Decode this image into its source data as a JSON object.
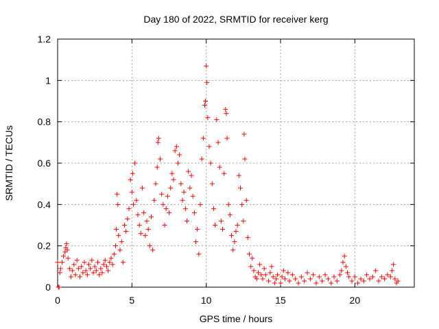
{
  "chart_data": {
    "type": "scatter",
    "title": "Day 180 of 2022, SRMTID for receiver kerg",
    "xlabel": "GPS time / hours",
    "ylabel": "SRMTID / TECUs",
    "xlim": [
      0,
      24
    ],
    "ylim": [
      0,
      1.2
    ],
    "xticks": [
      0,
      5,
      10,
      15,
      20
    ],
    "xtick_labels": [
      "0",
      "5",
      "10",
      "15",
      "20"
    ],
    "yticks": [
      0,
      0.2,
      0.4,
      0.6,
      0.8,
      1.0,
      1.2
    ],
    "ytick_labels": [
      "0",
      "0.2",
      "0.4",
      "0.6",
      "0.8",
      "1",
      "1.2"
    ],
    "grid": true,
    "marker": "+",
    "color": "#ff0000",
    "series": [
      {
        "name": "SRMTID",
        "points": [
          [
            0.0,
            0.12
          ],
          [
            0.05,
            0.0
          ],
          [
            0.1,
            0.0
          ],
          [
            0.15,
            0.07
          ],
          [
            0.2,
            0.09
          ],
          [
            0.3,
            0.12
          ],
          [
            0.4,
            0.15
          ],
          [
            0.5,
            0.17
          ],
          [
            0.55,
            0.19
          ],
          [
            0.6,
            0.21
          ],
          [
            0.65,
            0.18
          ],
          [
            0.7,
            0.14
          ],
          [
            0.8,
            0.09
          ],
          [
            0.9,
            0.05
          ],
          [
            1.0,
            0.08
          ],
          [
            1.1,
            0.11
          ],
          [
            1.2,
            0.06
          ],
          [
            1.3,
            0.13
          ],
          [
            1.4,
            0.09
          ],
          [
            1.5,
            0.05
          ],
          [
            1.6,
            0.1
          ],
          [
            1.7,
            0.07
          ],
          [
            1.8,
            0.12
          ],
          [
            1.9,
            0.08
          ],
          [
            2.0,
            0.06
          ],
          [
            2.1,
            0.11
          ],
          [
            2.2,
            0.09
          ],
          [
            2.3,
            0.13
          ],
          [
            2.4,
            0.07
          ],
          [
            2.5,
            0.1
          ],
          [
            2.6,
            0.08
          ],
          [
            2.7,
            0.12
          ],
          [
            2.8,
            0.06
          ],
          [
            2.9,
            0.09
          ],
          [
            3.0,
            0.07
          ],
          [
            3.1,
            0.11
          ],
          [
            3.2,
            0.13
          ],
          [
            3.3,
            0.1
          ],
          [
            3.4,
            0.08
          ],
          [
            3.5,
            0.12
          ],
          [
            3.6,
            0.14
          ],
          [
            3.7,
            0.11
          ],
          [
            3.8,
            0.16
          ],
          [
            3.9,
            0.2
          ],
          [
            3.95,
            0.28
          ],
          [
            4.0,
            0.45
          ],
          [
            4.05,
            0.4
          ],
          [
            4.1,
            0.25
          ],
          [
            4.2,
            0.18
          ],
          [
            4.3,
            0.22
          ],
          [
            4.4,
            0.12
          ],
          [
            4.5,
            0.3
          ],
          [
            4.6,
            0.27
          ],
          [
            4.7,
            0.33
          ],
          [
            4.8,
            0.38
          ],
          [
            4.9,
            0.52
          ],
          [
            5.0,
            0.46
          ],
          [
            5.05,
            0.55
          ],
          [
            5.1,
            0.4
          ],
          [
            5.2,
            0.6
          ],
          [
            5.3,
            0.42
          ],
          [
            5.4,
            0.35
          ],
          [
            5.5,
            0.3
          ],
          [
            5.6,
            0.26
          ],
          [
            5.7,
            0.48
          ],
          [
            5.8,
            0.36
          ],
          [
            5.9,
            0.25
          ],
          [
            6.0,
            0.32
          ],
          [
            6.1,
            0.28
          ],
          [
            6.2,
            0.2
          ],
          [
            6.3,
            0.34
          ],
          [
            6.4,
            0.18
          ],
          [
            6.5,
            0.42
          ],
          [
            6.6,
            0.5
          ],
          [
            6.7,
            0.58
          ],
          [
            6.75,
            0.7
          ],
          [
            6.8,
            0.72
          ],
          [
            6.9,
            0.62
          ],
          [
            7.0,
            0.45
          ],
          [
            7.1,
            0.4
          ],
          [
            7.2,
            0.3
          ],
          [
            7.3,
            0.38
          ],
          [
            7.4,
            0.44
          ],
          [
            7.5,
            0.36
          ],
          [
            7.6,
            0.48
          ],
          [
            7.7,
            0.55
          ],
          [
            7.8,
            0.52
          ],
          [
            7.9,
            0.66
          ],
          [
            8.0,
            0.68
          ],
          [
            8.1,
            0.6
          ],
          [
            8.2,
            0.64
          ],
          [
            8.3,
            0.5
          ],
          [
            8.4,
            0.42
          ],
          [
            8.5,
            0.46
          ],
          [
            8.6,
            0.38
          ],
          [
            8.7,
            0.32
          ],
          [
            8.8,
            0.56
          ],
          [
            8.9,
            0.48
          ],
          [
            9.0,
            0.54
          ],
          [
            9.1,
            0.44
          ],
          [
            9.2,
            0.36
          ],
          [
            9.3,
            0.22
          ],
          [
            9.4,
            0.28
          ],
          [
            9.5,
            0.16
          ],
          [
            9.6,
            0.4
          ],
          [
            9.7,
            0.62
          ],
          [
            9.8,
            0.72
          ],
          [
            9.9,
            0.88
          ],
          [
            9.95,
            0.9
          ],
          [
            10.0,
            1.07
          ],
          [
            10.05,
            0.99
          ],
          [
            10.1,
            0.82
          ],
          [
            10.2,
            0.68
          ],
          [
            10.3,
            0.6
          ],
          [
            10.4,
            0.5
          ],
          [
            10.5,
            0.38
          ],
          [
            10.6,
            0.3
          ],
          [
            10.7,
            0.81
          ],
          [
            10.8,
            0.7
          ],
          [
            10.9,
            0.58
          ],
          [
            11.0,
            0.32
          ],
          [
            11.1,
            0.28
          ],
          [
            11.2,
            0.55
          ],
          [
            11.3,
            0.86
          ],
          [
            11.35,
            0.84
          ],
          [
            11.4,
            0.72
          ],
          [
            11.5,
            0.4
          ],
          [
            11.6,
            0.35
          ],
          [
            11.7,
            0.25
          ],
          [
            11.8,
            0.18
          ],
          [
            11.9,
            0.22
          ],
          [
            12.0,
            0.27
          ],
          [
            12.1,
            0.3
          ],
          [
            12.2,
            0.54
          ],
          [
            12.3,
            0.48
          ],
          [
            12.4,
            0.4
          ],
          [
            12.5,
            0.32
          ],
          [
            12.55,
            0.74
          ],
          [
            12.6,
            0.62
          ],
          [
            12.7,
            0.42
          ],
          [
            12.8,
            0.24
          ],
          [
            12.9,
            0.16
          ],
          [
            13.0,
            0.1
          ],
          [
            13.1,
            0.14
          ],
          [
            13.2,
            0.08
          ],
          [
            13.3,
            0.05
          ],
          [
            13.4,
            0.04
          ],
          [
            13.5,
            0.07
          ],
          [
            13.6,
            0.11
          ],
          [
            13.7,
            0.06
          ],
          [
            13.8,
            0.04
          ],
          [
            13.9,
            0.09
          ],
          [
            14.0,
            0.06
          ],
          [
            14.2,
            0.03
          ],
          [
            14.3,
            0.07
          ],
          [
            14.4,
            0.1
          ],
          [
            14.5,
            0.05
          ],
          [
            14.6,
            0.02
          ],
          [
            14.7,
            0.04
          ],
          [
            14.8,
            0.06
          ],
          [
            15.0,
            0.02
          ],
          [
            15.1,
            0.05
          ],
          [
            15.2,
            0.08
          ],
          [
            15.3,
            0.04
          ],
          [
            15.5,
            0.07
          ],
          [
            15.6,
            0.03
          ],
          [
            15.8,
            0.06
          ],
          [
            16.0,
            0.04
          ],
          [
            16.2,
            0.02
          ],
          [
            16.4,
            0.05
          ],
          [
            16.6,
            0.03
          ],
          [
            16.8,
            0.07
          ],
          [
            17.0,
            0.04
          ],
          [
            17.2,
            0.06
          ],
          [
            17.4,
            0.02
          ],
          [
            17.6,
            0.05
          ],
          [
            17.8,
            0.03
          ],
          [
            18.0,
            0.06
          ],
          [
            18.2,
            0.04
          ],
          [
            18.4,
            0.02
          ],
          [
            18.6,
            0.05
          ],
          [
            18.8,
            0.03
          ],
          [
            19.0,
            0.06
          ],
          [
            19.1,
            0.08
          ],
          [
            19.2,
            0.12
          ],
          [
            19.3,
            0.15
          ],
          [
            19.4,
            0.1
          ],
          [
            19.5,
            0.07
          ],
          [
            19.6,
            0.05
          ],
          [
            19.8,
            0.03
          ],
          [
            20.0,
            0.05
          ],
          [
            20.2,
            0.02
          ],
          [
            20.4,
            0.04
          ],
          [
            20.6,
            0.03
          ],
          [
            20.8,
            0.06
          ],
          [
            21.0,
            0.04
          ],
          [
            21.2,
            0.05
          ],
          [
            21.4,
            0.08
          ],
          [
            21.6,
            0.03
          ],
          [
            21.8,
            0.05
          ],
          [
            22.0,
            0.04
          ],
          [
            22.2,
            0.06
          ],
          [
            22.4,
            0.05
          ],
          [
            22.5,
            0.08
          ],
          [
            22.6,
            0.11
          ],
          [
            22.7,
            0.04
          ],
          [
            22.8,
            0.02
          ],
          [
            22.9,
            0.03
          ]
        ]
      }
    ]
  }
}
